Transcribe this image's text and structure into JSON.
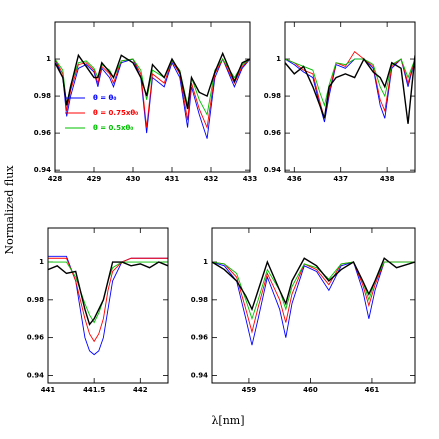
{
  "axis_labels": {
    "y": "Normalized flux",
    "x": "λ[nm]"
  },
  "chart_data": [
    {
      "type": "line",
      "xlim": [
        428,
        433
      ],
      "xticks": [
        428,
        429,
        430,
        431,
        432,
        433
      ],
      "ylim": [
        0.939,
        1.02
      ],
      "yticks": [
        0.94,
        0.96,
        0.98,
        1
      ],
      "legend": "lower left",
      "x": [
        428.0,
        428.2,
        428.3,
        428.4,
        428.6,
        428.8,
        429.0,
        429.1,
        429.2,
        429.4,
        429.5,
        429.7,
        430.0,
        430.2,
        430.35,
        430.5,
        430.8,
        431.0,
        431.2,
        431.4,
        431.5,
        431.7,
        431.9,
        432.1,
        432.3,
        432.6,
        432.8,
        433.0
      ],
      "series": [
        {
          "name": "θ = θ₀",
          "color": "#0000ff",
          "values": [
            1.0,
            0.99,
            0.969,
            0.98,
            0.995,
            0.997,
            0.993,
            0.985,
            0.995,
            0.99,
            0.985,
            0.998,
            1.0,
            0.99,
            0.96,
            0.99,
            0.985,
            0.998,
            0.99,
            0.963,
            0.985,
            0.97,
            0.957,
            0.99,
            1.0,
            0.985,
            0.995,
            1.0
          ]
        },
        {
          "name": "θ = 0.75xθ₀",
          "color": "#ff0000",
          "values": [
            1.0,
            0.992,
            0.972,
            0.983,
            0.997,
            0.998,
            0.994,
            0.987,
            0.996,
            0.992,
            0.987,
            0.999,
            1.0,
            0.992,
            0.963,
            0.992,
            0.987,
            0.999,
            0.992,
            0.967,
            0.987,
            0.973,
            0.963,
            0.992,
            1.0,
            0.987,
            0.996,
            1.0
          ]
        },
        {
          "name": "θ = 0.5xθ₀",
          "color": "#00c000",
          "values": [
            1.0,
            0.994,
            0.975,
            0.986,
            0.998,
            0.999,
            0.995,
            0.99,
            0.997,
            0.994,
            0.99,
            0.999,
            1.0,
            0.994,
            0.978,
            0.994,
            0.99,
            0.999,
            0.994,
            0.975,
            0.99,
            0.978,
            0.97,
            0.994,
            1.0,
            0.99,
            0.997,
            1.0
          ]
        },
        {
          "color": "#000000",
          "values": [
            0.998,
            0.99,
            0.975,
            0.985,
            1.002,
            0.996,
            0.99,
            0.99,
            0.998,
            0.993,
            0.99,
            1.002,
            0.998,
            0.99,
            0.98,
            0.997,
            0.99,
            1.0,
            0.993,
            0.973,
            0.99,
            0.982,
            0.98,
            0.993,
            1.003,
            0.988,
            0.998,
            1.0
          ]
        }
      ]
    },
    {
      "type": "line",
      "xlim": [
        435.8,
        438.6
      ],
      "xticks": [
        436,
        437,
        438
      ],
      "ylim": [
        0.939,
        1.02
      ],
      "yticks": [
        0.94,
        0.96,
        0.98,
        1
      ],
      "x": [
        435.8,
        436.0,
        436.2,
        436.4,
        436.55,
        436.65,
        436.75,
        436.9,
        437.1,
        437.3,
        437.5,
        437.7,
        437.85,
        437.95,
        438.1,
        438.3,
        438.45,
        438.6
      ],
      "series": [
        {
          "color": "#0000ff",
          "values": [
            1.0,
            0.997,
            0.993,
            0.99,
            0.975,
            0.966,
            0.98,
            0.997,
            0.995,
            1.0,
            1.0,
            0.995,
            0.975,
            0.968,
            0.995,
            1.0,
            0.985,
            1.0
          ]
        },
        {
          "color": "#ff0000",
          "values": [
            1.0,
            0.998,
            0.994,
            0.992,
            0.977,
            0.968,
            0.982,
            0.998,
            0.996,
            1.004,
            1.0,
            0.996,
            0.978,
            0.972,
            0.996,
            1.0,
            0.987,
            1.0
          ]
        },
        {
          "color": "#00c000",
          "values": [
            1.0,
            0.998,
            0.996,
            0.994,
            0.982,
            0.975,
            0.986,
            0.998,
            0.997,
            1.0,
            1.0,
            0.997,
            0.985,
            0.98,
            0.997,
            1.0,
            0.99,
            1.0
          ]
        },
        {
          "color": "#000000",
          "values": [
            0.998,
            0.992,
            0.996,
            0.985,
            0.975,
            0.968,
            0.985,
            0.99,
            0.992,
            0.99,
            1.0,
            0.993,
            0.99,
            0.985,
            0.998,
            0.995,
            0.965,
            1.002
          ]
        }
      ]
    },
    {
      "type": "line",
      "xlim": [
        441,
        442.3
      ],
      "xticks": [
        441,
        441.5,
        442
      ],
      "ylim": [
        0.936,
        1.018
      ],
      "yticks": [
        0.94,
        0.96,
        0.98,
        1
      ],
      "x": [
        441.0,
        441.1,
        441.2,
        441.3,
        441.4,
        441.45,
        441.5,
        441.55,
        441.6,
        441.65,
        441.7,
        441.8,
        441.9,
        442.0,
        442.1,
        442.2,
        442.3
      ],
      "series": [
        {
          "color": "#0000ff",
          "values": [
            1.003,
            1.003,
            1.003,
            0.99,
            0.96,
            0.953,
            0.951,
            0.953,
            0.96,
            0.975,
            0.99,
            1.0,
            1.002,
            1.002,
            1.002,
            1.002,
            1.002
          ]
        },
        {
          "color": "#ff0000",
          "values": [
            1.002,
            1.002,
            1.002,
            0.99,
            0.97,
            0.962,
            0.958,
            0.962,
            0.97,
            0.985,
            0.995,
            1.0,
            1.002,
            1.002,
            1.002,
            1.002,
            1.002
          ]
        },
        {
          "color": "#00c000",
          "values": [
            1.0,
            1.0,
            1.0,
            0.992,
            0.978,
            0.972,
            0.968,
            0.973,
            0.98,
            0.99,
            0.997,
            1.0,
            1.0,
            1.0,
            1.0,
            1.0,
            1.0
          ]
        },
        {
          "color": "#000000",
          "values": [
            0.996,
            0.998,
            0.994,
            0.995,
            0.975,
            0.967,
            0.97,
            0.975,
            0.98,
            0.99,
            1.0,
            1.0,
            0.998,
            0.999,
            0.997,
            1.0,
            0.998
          ]
        }
      ]
    },
    {
      "type": "line",
      "xlim": [
        458.4,
        461.7
      ],
      "xticks": [
        459,
        460,
        461
      ],
      "ylim": [
        0.936,
        1.018
      ],
      "yticks": [
        0.94,
        0.96,
        0.98,
        1
      ],
      "x": [
        458.4,
        458.6,
        458.8,
        458.95,
        459.05,
        459.15,
        459.3,
        459.5,
        459.6,
        459.7,
        459.9,
        460.1,
        460.3,
        460.5,
        460.7,
        460.85,
        460.95,
        461.05,
        461.2,
        461.4,
        461.7
      ],
      "series": [
        {
          "color": "#0000ff",
          "values": [
            1.0,
            0.998,
            0.99,
            0.97,
            0.956,
            0.97,
            0.992,
            0.975,
            0.96,
            0.978,
            0.998,
            0.995,
            0.985,
            0.998,
            1.0,
            0.985,
            0.97,
            0.985,
            1.0,
            1.0,
            1.0
          ]
        },
        {
          "color": "#ff0000",
          "values": [
            1.0,
            0.999,
            0.992,
            0.975,
            0.963,
            0.976,
            0.994,
            0.98,
            0.968,
            0.983,
            0.999,
            0.996,
            0.988,
            0.999,
            1.0,
            0.988,
            0.977,
            0.988,
            1.0,
            1.0,
            1.0
          ]
        },
        {
          "color": "#00c000",
          "values": [
            1.0,
            0.999,
            0.994,
            0.98,
            0.97,
            0.98,
            0.996,
            0.985,
            0.975,
            0.987,
            0.999,
            0.997,
            0.991,
            0.999,
            1.0,
            0.99,
            0.98,
            0.99,
            1.0,
            1.0,
            1.0
          ]
        },
        {
          "color": "#000000",
          "values": [
            1.0,
            0.996,
            0.99,
            0.982,
            0.975,
            0.985,
            1.0,
            0.985,
            0.978,
            0.99,
            1.002,
            0.998,
            0.99,
            0.996,
            1.0,
            0.99,
            0.983,
            0.99,
            1.002,
            0.997,
            1.0
          ]
        }
      ]
    }
  ]
}
